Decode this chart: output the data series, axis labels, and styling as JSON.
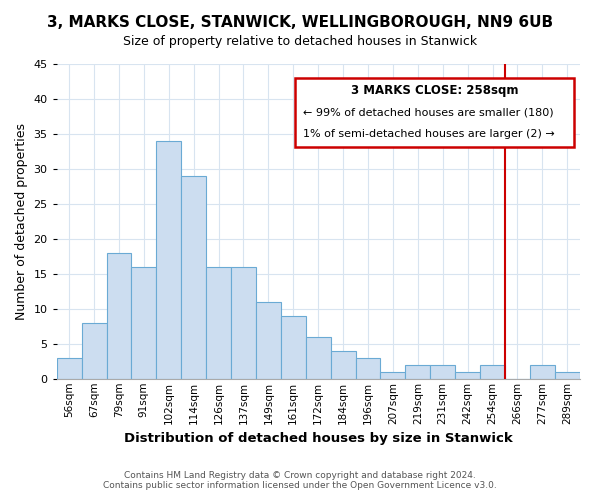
{
  "title": "3, MARKS CLOSE, STANWICK, WELLINGBOROUGH, NN9 6UB",
  "subtitle": "Size of property relative to detached houses in Stanwick",
  "xlabel": "Distribution of detached houses by size in Stanwick",
  "ylabel": "Number of detached properties",
  "bar_labels": [
    "56sqm",
    "67sqm",
    "79sqm",
    "91sqm",
    "102sqm",
    "114sqm",
    "126sqm",
    "137sqm",
    "149sqm",
    "161sqm",
    "172sqm",
    "184sqm",
    "196sqm",
    "207sqm",
    "219sqm",
    "231sqm",
    "242sqm",
    "254sqm",
    "266sqm",
    "277sqm",
    "289sqm"
  ],
  "bar_heights": [
    3,
    8,
    18,
    16,
    34,
    29,
    16,
    16,
    11,
    9,
    6,
    4,
    3,
    1,
    2,
    2,
    1,
    2,
    0,
    2,
    1
  ],
  "bar_color": "#ccddf0",
  "bar_edge_color": "#6aaad4",
  "vline_color": "#cc0000",
  "ylim": [
    0,
    45
  ],
  "yticks": [
    0,
    5,
    10,
    15,
    20,
    25,
    30,
    35,
    40,
    45
  ],
  "annotation_title": "3 MARKS CLOSE: 258sqm",
  "annotation_line1": "← 99% of detached houses are smaller (180)",
  "annotation_line2": "1% of semi-detached houses are larger (2) →",
  "annotation_box_edge": "#cc0000",
  "footer_line1": "Contains HM Land Registry data © Crown copyright and database right 2024.",
  "footer_line2": "Contains public sector information licensed under the Open Government Licence v3.0.",
  "bg_color": "#ffffff",
  "plot_bg_color": "#ffffff",
  "grid_color": "#d8e4f0"
}
